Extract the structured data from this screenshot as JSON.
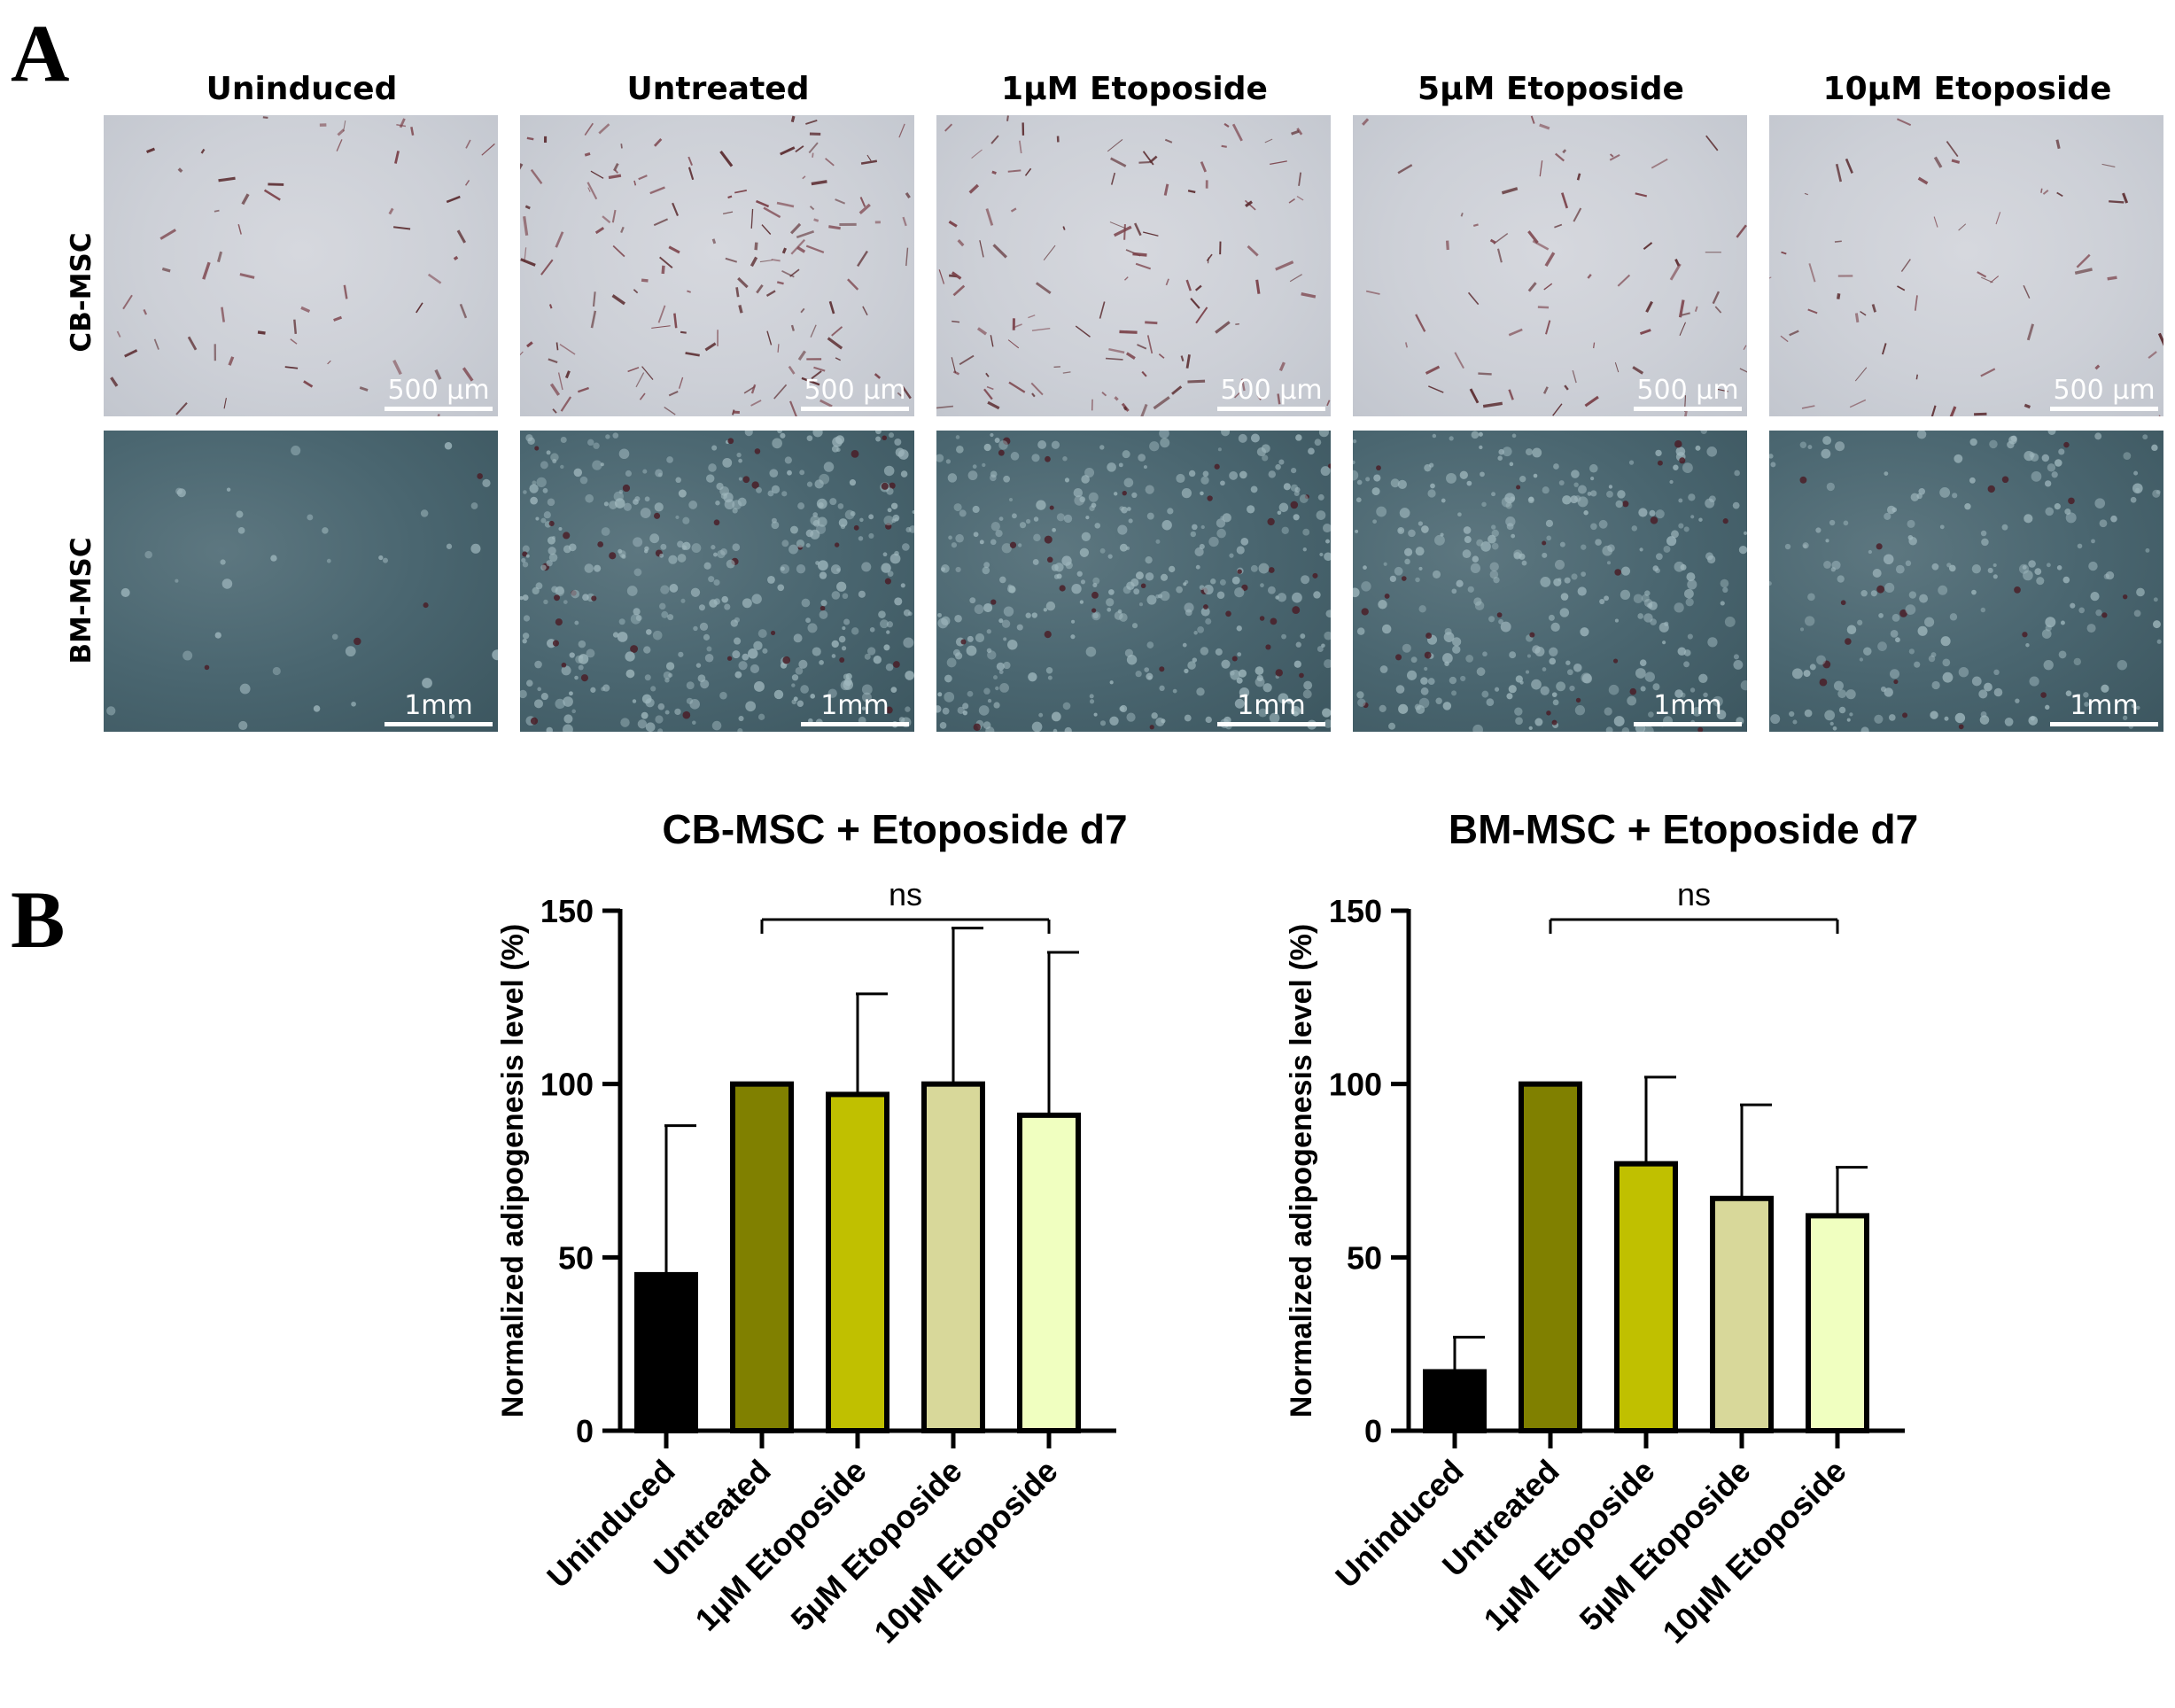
{
  "figure": {
    "panel_a_letter": "A",
    "panel_b_letter": "B"
  },
  "micrographs": {
    "columns": [
      "Uninduced",
      "Untreated",
      "1µM Etoposide",
      "5µM Etoposide",
      "10µM Etoposide"
    ],
    "rows": [
      {
        "label": "CB-MSC",
        "scale_label": "500 µm"
      },
      {
        "label": "BM-MSC",
        "scale_label": "1mm"
      }
    ]
  },
  "chart_data": [
    {
      "type": "bar",
      "title": "CB-MSC + Etoposide d7",
      "ylabel": "Normalized adipogenesis level (%)",
      "xlabel": "",
      "categories": [
        "Uninduced",
        "Untreated",
        "1µM Etoposide",
        "5µM Etoposide",
        "10µM Etoposide"
      ],
      "values": [
        45,
        100,
        97,
        100,
        91
      ],
      "error_upper": [
        88,
        100,
        126,
        145,
        138
      ],
      "ylim": [
        0,
        150
      ],
      "yticks": [
        0,
        50,
        100,
        150
      ],
      "bar_colors": [
        "#000000",
        "#808000",
        "#c0c000",
        "#d8d89a",
        "#f0ffc0"
      ],
      "significance": {
        "label": "ns",
        "from_index": 1,
        "to_index": 4
      },
      "grid": false,
      "legend": "none"
    },
    {
      "type": "bar",
      "title": "BM-MSC + Etoposide d7",
      "ylabel": "Normalized adipogenesis level (%)",
      "xlabel": "",
      "categories": [
        "Uninduced",
        "Untreated",
        "1µM Etoposide",
        "5µM Etoposide",
        "10µM Etoposide"
      ],
      "values": [
        17,
        100,
        77,
        67,
        62
      ],
      "error_upper": [
        27,
        100,
        102,
        94,
        76
      ],
      "ylim": [
        0,
        150
      ],
      "yticks": [
        0,
        50,
        100,
        150
      ],
      "bar_colors": [
        "#000000",
        "#808000",
        "#c0c000",
        "#d8d89a",
        "#f0ffc0"
      ],
      "significance": {
        "label": "ns",
        "from_index": 1,
        "to_index": 4
      },
      "grid": false,
      "legend": "none"
    }
  ]
}
